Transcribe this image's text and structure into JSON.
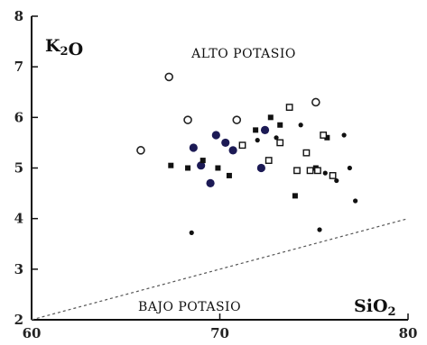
{
  "chart_data": {
    "type": "scatter",
    "xlabel": "SiO2",
    "ylabel": "K2O",
    "xlim": [
      60,
      80
    ],
    "ylim": [
      2,
      8
    ],
    "x_ticks": [
      "60",
      "70",
      "80"
    ],
    "y_ticks": [
      "2",
      "3",
      "4",
      "5",
      "6",
      "7",
      "8"
    ],
    "grid": false,
    "annotations": {
      "upper_region": "ALTO POTASIO",
      "lower_region": "BAJO POTASIO"
    },
    "boundary_line": {
      "x": [
        60,
        80
      ],
      "y": [
        2.0,
        4.0
      ]
    },
    "series": [
      {
        "marker": "open-circle",
        "color": "#222222",
        "points": [
          [
            65.8,
            5.35
          ],
          [
            67.3,
            6.8
          ],
          [
            68.3,
            5.95
          ],
          [
            70.9,
            5.95
          ],
          [
            75.1,
            6.3
          ]
        ]
      },
      {
        "marker": "filled-circle",
        "color": "#1c1a55",
        "points": [
          [
            68.6,
            5.4
          ],
          [
            69.0,
            5.05
          ],
          [
            69.5,
            4.7
          ],
          [
            69.8,
            5.65
          ],
          [
            70.3,
            5.5
          ],
          [
            70.7,
            5.35
          ],
          [
            72.2,
            5.0
          ],
          [
            72.4,
            5.75
          ]
        ]
      },
      {
        "marker": "filled-square",
        "color": "#111111",
        "points": [
          [
            67.4,
            5.05
          ],
          [
            68.3,
            5.0
          ],
          [
            69.1,
            5.15
          ],
          [
            69.9,
            5.0
          ],
          [
            70.5,
            4.85
          ],
          [
            71.9,
            5.75
          ],
          [
            72.7,
            6.0
          ],
          [
            73.2,
            5.85
          ],
          [
            74.0,
            4.45
          ],
          [
            75.1,
            5.0
          ],
          [
            75.7,
            5.6
          ]
        ]
      },
      {
        "marker": "open-square",
        "color": "#111111",
        "points": [
          [
            71.2,
            5.45
          ],
          [
            72.6,
            5.15
          ],
          [
            73.2,
            5.5
          ],
          [
            73.7,
            6.2
          ],
          [
            74.1,
            4.95
          ],
          [
            74.6,
            5.3
          ],
          [
            74.8,
            4.95
          ],
          [
            75.2,
            4.95
          ],
          [
            75.5,
            5.65
          ],
          [
            76.0,
            4.85
          ]
        ]
      },
      {
        "marker": "small-dot",
        "color": "#111111",
        "points": [
          [
            68.5,
            3.72
          ],
          [
            72.0,
            5.55
          ],
          [
            73.0,
            5.6
          ],
          [
            74.3,
            5.85
          ],
          [
            75.3,
            3.78
          ],
          [
            75.6,
            4.9
          ],
          [
            76.2,
            4.75
          ],
          [
            76.6,
            5.65
          ],
          [
            76.9,
            5.0
          ],
          [
            77.2,
            4.35
          ]
        ]
      }
    ]
  }
}
